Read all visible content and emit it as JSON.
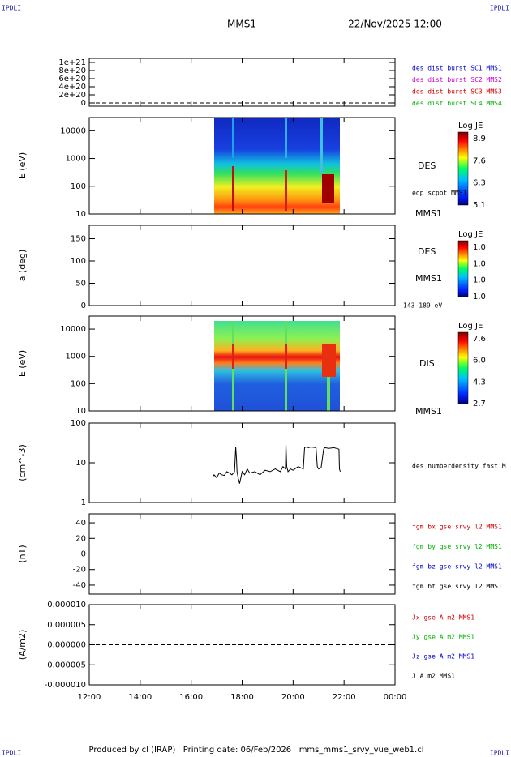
{
  "header": {
    "corner_labels": [
      "IPDLI",
      "IPDLI",
      "IPDLI",
      "IPDLI"
    ],
    "title": "MMS1",
    "date": "22/Nov/2025 12:00"
  },
  "footer": "Produced by cl (IRAP)   Printing date: 06/Feb/2026   mms_mms1_srvy_vue_web1.cl",
  "chart_data": [
    {
      "type": "line",
      "ylim": [
        -8e+19,
        1.1e+21
      ],
      "yticks": [
        {
          "value": 1e+21,
          "label": "1e+21"
        },
        {
          "value": 8e+20,
          "label": "8e+20"
        },
        {
          "value": 6e+20,
          "label": "6e+20"
        },
        {
          "value": 4e+20,
          "label": "4e+20"
        },
        {
          "value": 2e+20,
          "label": "2e+20"
        },
        0
      ],
      "zero_line": true,
      "series": [
        {
          "name": "des dist burst SC1 MMS1",
          "color": "#0000c8",
          "values": []
        },
        {
          "name": "des dist burst SC2 MMS2",
          "color": "#c800c8",
          "values": []
        },
        {
          "name": "des dist burst SC3 MMS3",
          "color": "#d00000",
          "values": []
        },
        {
          "name": "des dist burst SC4 MMS4",
          "color": "#00b000",
          "values": []
        }
      ]
    },
    {
      "type": "spectrogram",
      "ylabel": "E (eV)",
      "log": true,
      "ylim": [
        10,
        30000
      ],
      "yticks": [
        10,
        100,
        1000,
        10000
      ],
      "colorbar_title": "Log JE",
      "colorbar_labels": [
        "8.9",
        "7.6",
        "6.3",
        "5.1"
      ],
      "side_labels": [
        "DES",
        "edp scpot MMS1",
        "MMS1"
      ]
    },
    {
      "type": "spectrogram",
      "ylabel": "a (deg)",
      "ylim": [
        0,
        180
      ],
      "yticks": [
        0,
        50,
        100,
        150
      ],
      "colorbar_title": "Log JE",
      "colorbar_labels": [
        "1.0",
        "1.0",
        "1.0",
        "1.0"
      ],
      "side_labels": [
        "DES",
        "MMS1",
        "143-189 eV"
      ]
    },
    {
      "type": "spectrogram",
      "ylabel": "E (eV)",
      "log": true,
      "ylim": [
        10,
        30000
      ],
      "yticks": [
        10,
        100,
        1000,
        10000
      ],
      "colorbar_title": "Log JE",
      "colorbar_labels": [
        "7.6",
        "6.0",
        "4.3",
        "2.7"
      ],
      "side_labels": [
        "DIS",
        "MMS1"
      ]
    },
    {
      "type": "line",
      "ylabel": "(cm^-3)",
      "log": true,
      "ylim": [
        1,
        100
      ],
      "yticks": [
        1,
        10,
        100
      ],
      "x": [
        16.85,
        16.9,
        17.0,
        17.1,
        17.2,
        17.3,
        17.4,
        17.5,
        17.6,
        17.7,
        17.75,
        17.78,
        17.8,
        17.85,
        17.9,
        18.0,
        18.1,
        18.2,
        18.3,
        18.5,
        18.7,
        18.9,
        19.1,
        19.3,
        19.5,
        19.6,
        19.7,
        19.72,
        19.75,
        19.8,
        19.9,
        20.0,
        20.2,
        20.4,
        20.45,
        20.5,
        20.6,
        20.7,
        20.9,
        20.95,
        21.0,
        21.1,
        21.2,
        21.25,
        21.4,
        21.6,
        21.8,
        21.82,
        21.85
      ],
      "series": [
        {
          "name": "des numberdensity fast M",
          "color": "#000000",
          "values": [
            4.5,
            5,
            4.2,
            5.5,
            5,
            4.8,
            6,
            5.5,
            5,
            6,
            25,
            12,
            6,
            4,
            3,
            6,
            5,
            7,
            5.5,
            6,
            5,
            6.5,
            6,
            7,
            6,
            8,
            7,
            30,
            8,
            6,
            7,
            6.5,
            8,
            7,
            24,
            25,
            24,
            25,
            24,
            8,
            7,
            7.5,
            22,
            24,
            23,
            24,
            22,
            7,
            6
          ]
        }
      ]
    },
    {
      "type": "line",
      "ylabel": "(nT)",
      "ylim": [
        -51.5,
        51.5
      ],
      "yticks": [
        40,
        20,
        0,
        -20,
        -40
      ],
      "zero_line": true,
      "series": [
        {
          "name": "fgm bx gse srvy l2 MMS1",
          "color": "#d00000",
          "values": []
        },
        {
          "name": "fgm by gse srvy l2 MMS1",
          "color": "#00b000",
          "values": []
        },
        {
          "name": "fgm bz gse srvy l2 MMS1",
          "color": "#0000c8",
          "values": []
        },
        {
          "name": "fgm bt gse srvy l2 MMS1",
          "color": "#000000",
          "values": []
        }
      ]
    },
    {
      "type": "line",
      "ylabel": "(A/m2)",
      "ylim": [
        -1e-05,
        1e-05
      ],
      "yticks": [
        {
          "value": 1e-05,
          "label": "0.000010"
        },
        {
          "value": 5e-06,
          "label": "0.000005"
        },
        {
          "value": 0,
          "label": "0.000000"
        },
        {
          "value": -5e-06,
          "label": "-0.000005"
        },
        {
          "value": -1e-05,
          "label": "-0.000010"
        }
      ],
      "zero_line": true,
      "xlim": [
        12,
        24
      ],
      "xticks": [
        {
          "value": 12,
          "label": "12:00"
        },
        {
          "value": 14,
          "label": "14:00"
        },
        {
          "value": 16,
          "label": "16:00"
        },
        {
          "value": 18,
          "label": "18:00"
        },
        {
          "value": 20,
          "label": "20:00"
        },
        {
          "value": 22,
          "label": "22:00"
        },
        {
          "value": 24,
          "label": "00:00"
        }
      ],
      "series": [
        {
          "name": "Jx gse A m2 MMS1",
          "color": "#d00000",
          "values": []
        },
        {
          "name": "Jy gse A m2 MMS1",
          "color": "#00b000",
          "values": []
        },
        {
          "name": "Jz gse A m2 MMS1",
          "color": "#0000c8",
          "values": []
        },
        {
          "name": "J A m2 MMS1",
          "color": "#000000",
          "values": []
        }
      ]
    }
  ]
}
